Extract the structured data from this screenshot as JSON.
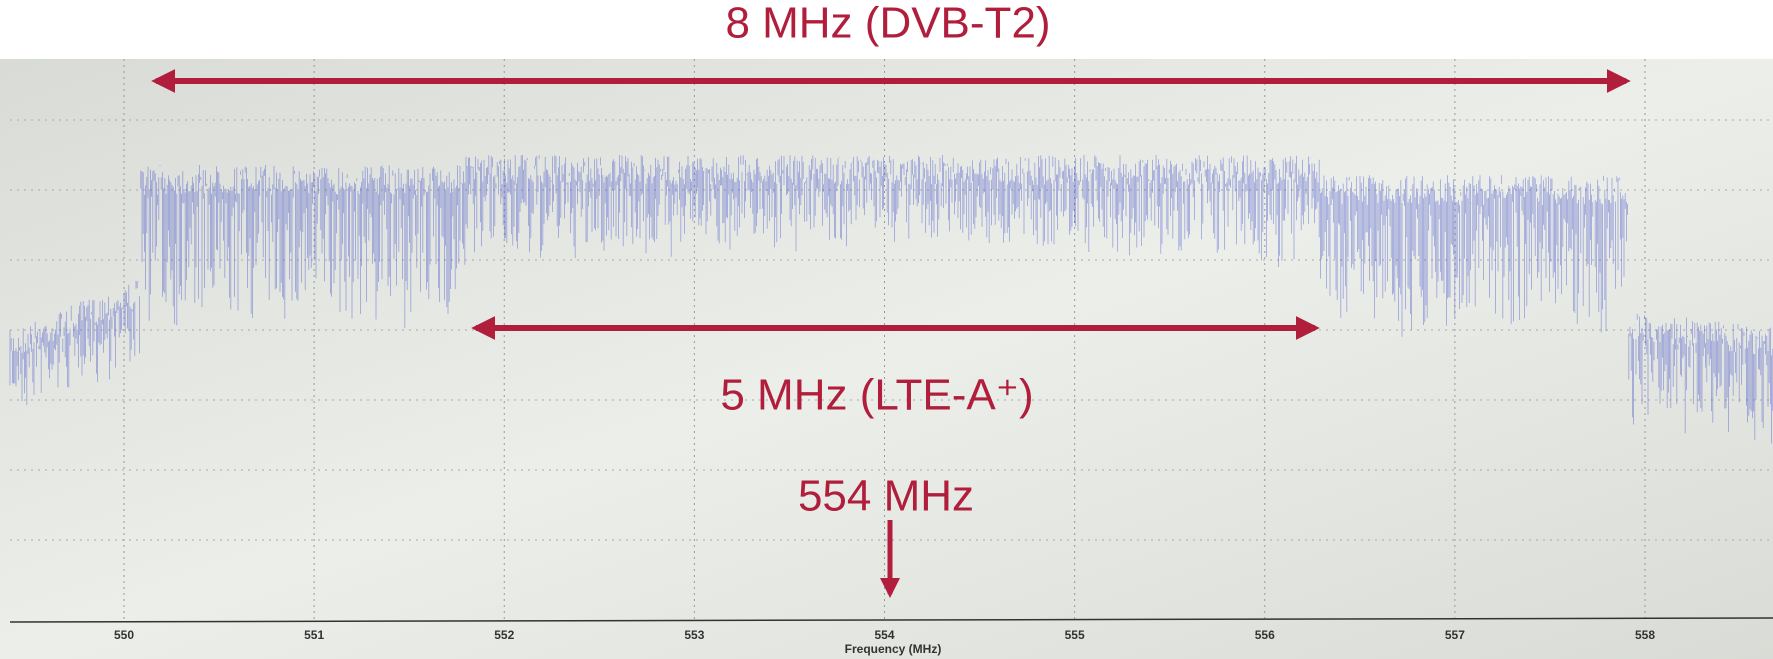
{
  "annotations": {
    "wide_band": "8 MHz (DVB-T2)",
    "narrow_band": "5 MHz (LTE-A⁺)",
    "center": "554 MHz"
  },
  "x_axis": {
    "label": "Frequency (MHz)",
    "ticks": [
      550,
      551,
      552,
      553,
      554,
      555,
      556,
      557,
      558
    ]
  }
}
